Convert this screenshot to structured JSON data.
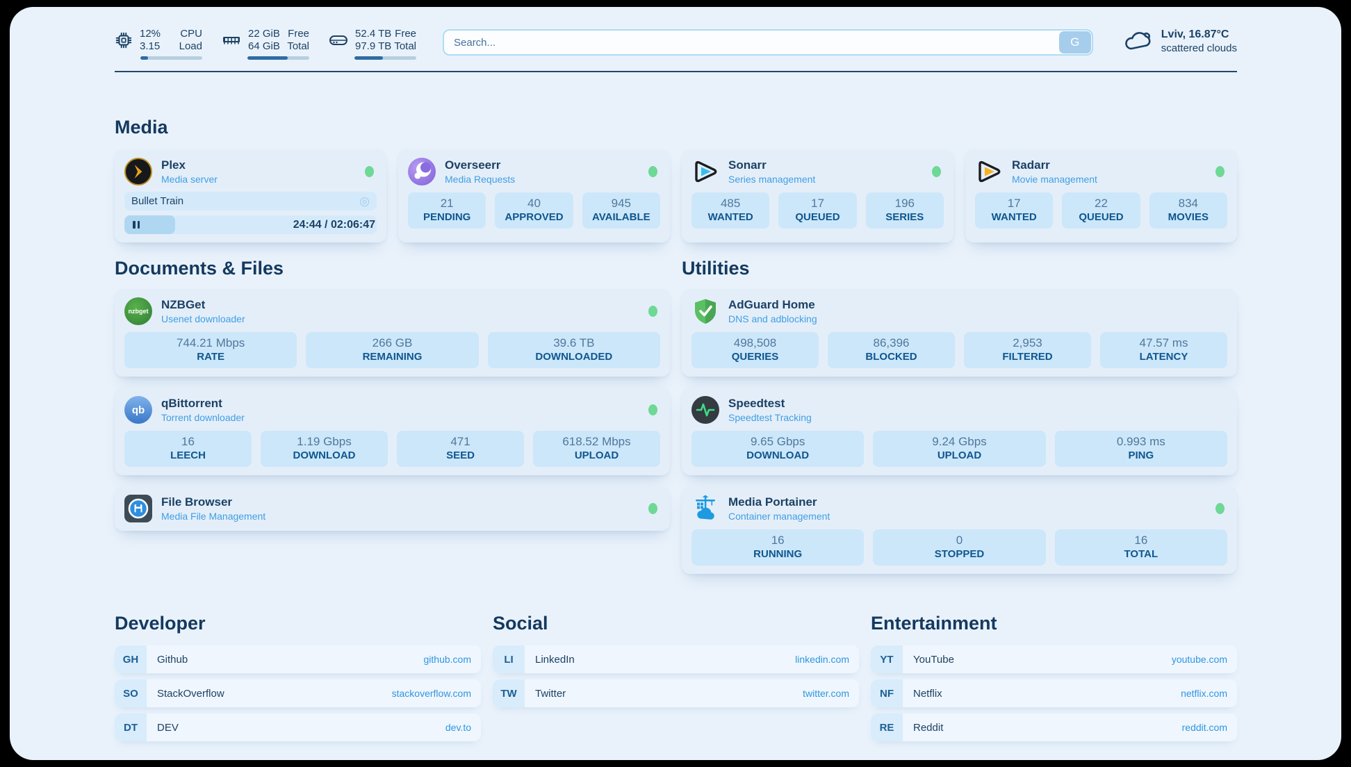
{
  "colors": {
    "online_green": "#6ed895",
    "accent_blue": "#2f96e0",
    "navy_text": "#1c4164",
    "page_bg": "#e9f2fb"
  },
  "topbar": {
    "cpu": {
      "value_top": "12%",
      "value_bottom": "3.15",
      "label_top": "CPU",
      "label_bottom": "Load",
      "progress_pct": 12
    },
    "ram": {
      "value_top": "22 GiB",
      "value_bottom": "64 GiB",
      "label_top": "Free",
      "label_bottom": "Total",
      "progress_pct": 65
    },
    "disk": {
      "value_top": "52.4 TB",
      "value_bottom": "97.9 TB",
      "label_top": "Free",
      "label_bottom": "Total",
      "progress_pct": 46
    },
    "search": {
      "placeholder": "Search...",
      "button_label": "G"
    },
    "weather": {
      "location_temp": "Lviv, 16.87°C",
      "condition": "scattered clouds"
    }
  },
  "media": {
    "title": "Media",
    "plex": {
      "name": "Plex",
      "subtitle": "Media server",
      "now_playing": "Bullet Train",
      "time": "24:44 / 02:06:47",
      "progress_pct": 20
    },
    "overseerr": {
      "name": "Overseerr",
      "subtitle": "Media Requests",
      "stats": [
        {
          "value": "21",
          "label": "PENDING"
        },
        {
          "value": "40",
          "label": "APPROVED"
        },
        {
          "value": "945",
          "label": "AVAILABLE"
        }
      ]
    },
    "sonarr": {
      "name": "Sonarr",
      "subtitle": "Series management",
      "stats": [
        {
          "value": "485",
          "label": "WANTED"
        },
        {
          "value": "17",
          "label": "QUEUED"
        },
        {
          "value": "196",
          "label": "SERIES"
        }
      ]
    },
    "radarr": {
      "name": "Radarr",
      "subtitle": "Movie management",
      "stats": [
        {
          "value": "17",
          "label": "WANTED"
        },
        {
          "value": "22",
          "label": "QUEUED"
        },
        {
          "value": "834",
          "label": "MOVIES"
        }
      ]
    }
  },
  "documents": {
    "title": "Documents & Files",
    "nzbget": {
      "name": "NZBGet",
      "subtitle": "Usenet downloader",
      "icon_text": "nzbget",
      "stats": [
        {
          "value": "744.21 Mbps",
          "label": "RATE"
        },
        {
          "value": "266 GB",
          "label": "REMAINING"
        },
        {
          "value": "39.6 TB",
          "label": "DOWNLOADED"
        }
      ]
    },
    "qbittorrent": {
      "name": "qBittorrent",
      "subtitle": "Torrent downloader",
      "icon_text": "qb",
      "stats": [
        {
          "value": "16",
          "label": "LEECH"
        },
        {
          "value": "1.19 Gbps",
          "label": "DOWNLOAD"
        },
        {
          "value": "471",
          "label": "SEED"
        },
        {
          "value": "618.52 Mbps",
          "label": "UPLOAD"
        }
      ]
    },
    "filebrowser": {
      "name": "File Browser",
      "subtitle": "Media File Management"
    }
  },
  "utilities": {
    "title": "Utilities",
    "adguard": {
      "name": "AdGuard Home",
      "subtitle": "DNS and adblocking",
      "stats": [
        {
          "value": "498,508",
          "label": "QUERIES"
        },
        {
          "value": "86,396",
          "label": "BLOCKED"
        },
        {
          "value": "2,953",
          "label": "FILTERED"
        },
        {
          "value": "47.57 ms",
          "label": "LATENCY"
        }
      ]
    },
    "speedtest": {
      "name": "Speedtest",
      "subtitle": "Speedtest Tracking",
      "stats": [
        {
          "value": "9.65 Gbps",
          "label": "DOWNLOAD"
        },
        {
          "value": "9.24 Gbps",
          "label": "UPLOAD"
        },
        {
          "value": "0.993 ms",
          "label": "PING"
        }
      ]
    },
    "portainer": {
      "name": "Media Portainer",
      "subtitle": "Container management",
      "stats": [
        {
          "value": "16",
          "label": "RUNNING"
        },
        {
          "value": "0",
          "label": "STOPPED"
        },
        {
          "value": "16",
          "label": "TOTAL"
        }
      ]
    }
  },
  "bookmarks": {
    "developer": {
      "title": "Developer",
      "links": [
        {
          "abbr": "GH",
          "name": "Github",
          "url": "github.com"
        },
        {
          "abbr": "SO",
          "name": "StackOverflow",
          "url": "stackoverflow.com"
        },
        {
          "abbr": "DT",
          "name": "DEV",
          "url": "dev.to"
        }
      ]
    },
    "social": {
      "title": "Social",
      "links": [
        {
          "abbr": "LI",
          "name": "LinkedIn",
          "url": "linkedin.com"
        },
        {
          "abbr": "TW",
          "name": "Twitter",
          "url": "twitter.com"
        }
      ]
    },
    "entertainment": {
      "title": "Entertainment",
      "links": [
        {
          "abbr": "YT",
          "name": "YouTube",
          "url": "youtube.com"
        },
        {
          "abbr": "NF",
          "name": "Netflix",
          "url": "netflix.com"
        },
        {
          "abbr": "RE",
          "name": "Reddit",
          "url": "reddit.com"
        }
      ]
    }
  }
}
